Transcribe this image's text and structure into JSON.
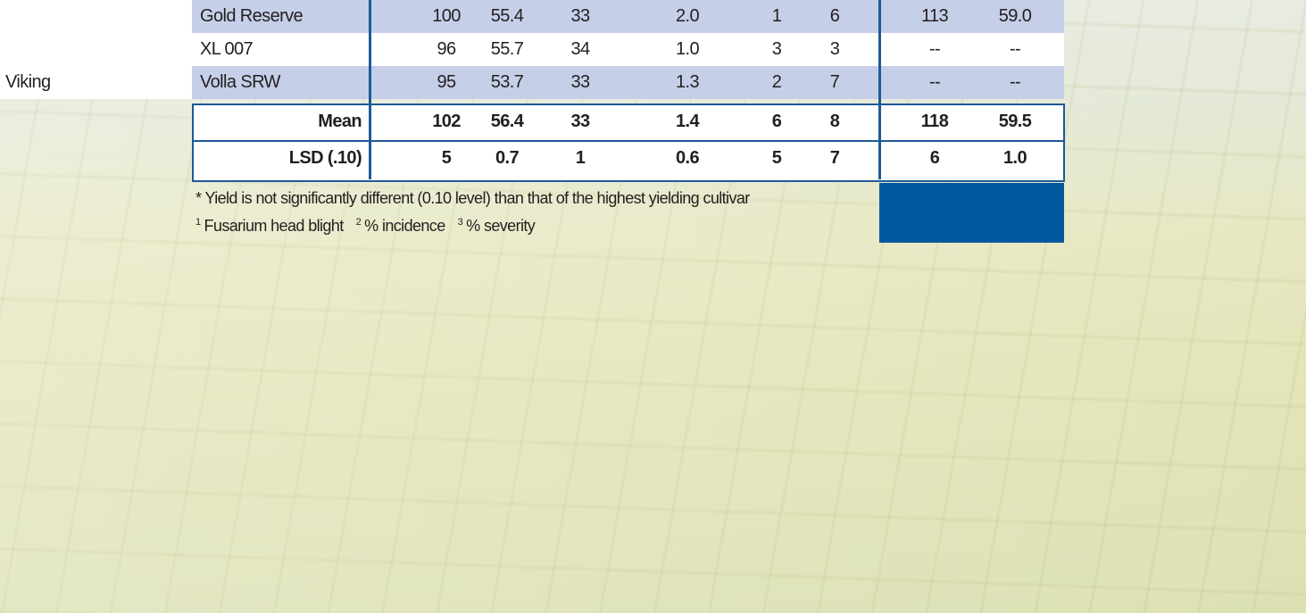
{
  "table": {
    "rows": [
      {
        "brand": null,
        "cultivar": "Gold Reserve",
        "cells": [
          "100",
          "55.4",
          "33",
          "2.0",
          "1",
          "6",
          "113",
          "59.0"
        ]
      },
      {
        "brand": null,
        "cultivar": "XL 007",
        "cells": [
          "96",
          "55.7",
          "34",
          "1.0",
          "3",
          "3",
          "--",
          "--"
        ]
      },
      {
        "brand": "Viking",
        "cultivar": "Volla SRW",
        "cells": [
          "95",
          "53.7",
          "33",
          "1.3",
          "2",
          "7",
          "--",
          "--"
        ]
      }
    ],
    "summary": [
      {
        "label": "Mean",
        "cells": [
          "102",
          "56.4",
          "33",
          "1.4",
          "6",
          "8",
          "118",
          "59.5"
        ]
      },
      {
        "label": "LSD (.10)",
        "cells": [
          "5",
          "0.7",
          "1",
          "0.6",
          "5",
          "7",
          "6",
          "1.0"
        ]
      }
    ]
  },
  "footnotes": {
    "significance": "* Yield is not significantly different (0.10 level) than that of the highest yielding cultivar",
    "notes": [
      {
        "mark": "1",
        "text": "Fusarium head blight"
      },
      {
        "mark": "2",
        "text": "% incidence"
      },
      {
        "mark": "3",
        "text": "% severity"
      }
    ]
  }
}
